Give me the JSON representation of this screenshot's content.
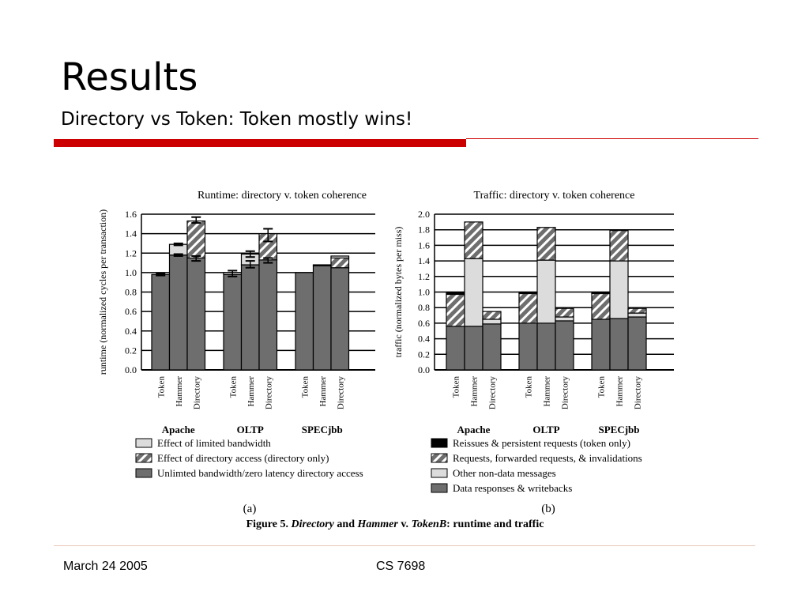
{
  "slide": {
    "title": "Results",
    "subtitle": "Directory vs Token: Token mostly wins!",
    "footer_date": "March 24 2005",
    "footer_course": "CS 7698"
  },
  "figure": {
    "caption_prefix": "Figure 5. ",
    "caption_dir": "Directory",
    "caption_and": " and ",
    "caption_hammer": "Hammer",
    "caption_v": " v. ",
    "caption_tokenb": "TokenB",
    "caption_suffix": ": runtime and traffic",
    "label_a": "(a)",
    "label_b": "(b)"
  },
  "colors": {
    "dark_gray": "#6e6e6e",
    "light_gray": "#dcdcdc",
    "black": "#000000",
    "accent_red": "#cc0000"
  },
  "chart_data": [
    {
      "type": "bar",
      "stacked": true,
      "title": "Runtime: directory v. token coherence",
      "ylabel": "runtime (normalized cycles per transaction)",
      "ylim": [
        0,
        1.6
      ],
      "yticks": [
        "0.0",
        "0.2",
        "0.4",
        "0.6",
        "0.8",
        "1.0",
        "1.2",
        "1.4",
        "1.6"
      ],
      "groups": [
        "Apache",
        "OLTP",
        "SPECjbb"
      ],
      "categories": [
        "Token",
        "Hammer",
        "Directory",
        "Token",
        "Hammer",
        "Directory",
        "Token",
        "Hammer",
        "Directory"
      ],
      "series": [
        {
          "name": "Unlimted bandwidth/zero latency directory access",
          "pattern": "dark",
          "values": [
            0.98,
            1.18,
            1.15,
            0.98,
            1.08,
            1.13,
            1.0,
            1.07,
            1.05
          ]
        },
        {
          "name": "Effect of directory access (directory only)",
          "pattern": "hatch",
          "values": [
            0,
            0,
            0.38,
            0,
            0,
            0.27,
            0,
            0,
            0.1
          ]
        },
        {
          "name": "Effect of limited bandwidth",
          "pattern": "light",
          "values": [
            0,
            0.11,
            0,
            0.02,
            0.11,
            0,
            0,
            0.01,
            0.02
          ]
        }
      ],
      "grid": true,
      "legend_position": "bottom"
    },
    {
      "type": "bar",
      "stacked": true,
      "title": "Traffic: directory v. token coherence",
      "ylabel": "traffic (normalized bytes per miss)",
      "ylim": [
        0,
        2.0
      ],
      "yticks": [
        "0.0",
        "0.2",
        "0.4",
        "0.6",
        "0.8",
        "1.0",
        "1.2",
        "1.4",
        "1.6",
        "1.8",
        "2.0"
      ],
      "groups": [
        "Apache",
        "OLTP",
        "SPECjbb"
      ],
      "categories": [
        "Token",
        "Hammer",
        "Directory",
        "Token",
        "Hammer",
        "Directory",
        "Token",
        "Hammer",
        "Directory"
      ],
      "series": [
        {
          "name": "Data responses & writebacks",
          "pattern": "dark",
          "values": [
            0.56,
            0.56,
            0.59,
            0.6,
            0.6,
            0.63,
            0.65,
            0.66,
            0.68
          ]
        },
        {
          "name": "Other non-data messages",
          "pattern": "light",
          "values": [
            0,
            0.87,
            0.06,
            0,
            0.81,
            0.05,
            0,
            0.74,
            0.05
          ]
        },
        {
          "name": "Requests, forwarded requests, & invalidations",
          "pattern": "hatch",
          "values": [
            0.41,
            0.47,
            0.1,
            0.38,
            0.42,
            0.11,
            0.33,
            0.39,
            0.06
          ]
        },
        {
          "name": "Reissues & persistent requests (token only)",
          "pattern": "black",
          "values": [
            0.03,
            0,
            0,
            0.02,
            0,
            0,
            0.02,
            0,
            0
          ]
        }
      ],
      "grid": true,
      "legend_position": "bottom"
    }
  ]
}
